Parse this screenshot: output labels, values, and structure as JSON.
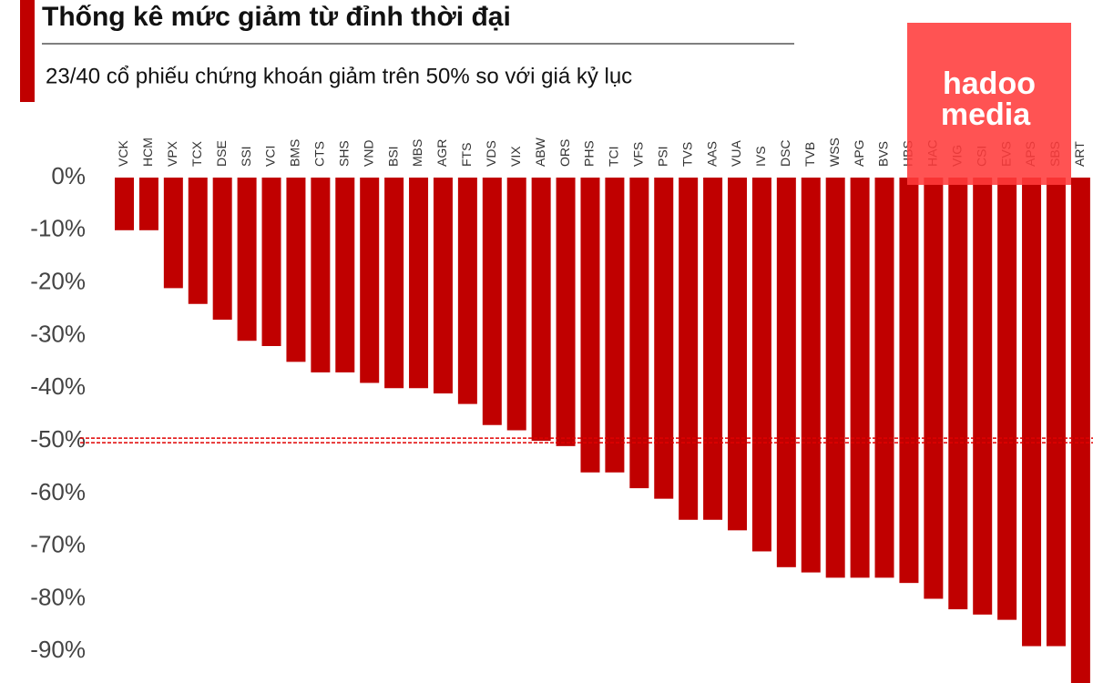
{
  "chart_data": {
    "type": "bar",
    "title": "Thống kê mức giảm từ đỉnh thời đại",
    "subtitle": "23/40 cổ phiếu chứng khoán giảm trên 50% so với giá kỷ lục",
    "categories": [
      "VCK",
      "HCM",
      "VPX",
      "TCX",
      "DSE",
      "SSI",
      "VCI",
      "BMS",
      "CTS",
      "SHS",
      "VND",
      "BSI",
      "MBS",
      "AGR",
      "FTS",
      "VDS",
      "VIX",
      "ABW",
      "ORS",
      "PHS",
      "TCI",
      "VFS",
      "PSI",
      "TVS",
      "AAS",
      "VUA",
      "IVS",
      "DSC",
      "TVB",
      "WSS",
      "APG",
      "BVS",
      "HBS",
      "HAC",
      "VIG",
      "CSI",
      "EVS",
      "APS",
      "SBS",
      "ART"
    ],
    "values": [
      -10,
      -10,
      -21,
      -24,
      -27,
      -31,
      -32,
      -35,
      -37,
      -37,
      -39,
      -40,
      -40,
      -41,
      -43,
      -47,
      -48,
      -50,
      -51,
      -56,
      -56,
      -59,
      -61,
      -65,
      -65,
      -67,
      -71,
      -74,
      -75,
      -76,
      -76,
      -76,
      -77,
      -80,
      -82,
      -83,
      -84,
      -89,
      -89,
      -97
    ],
    "color": "#c00000",
    "ylim": [
      -96,
      0
    ],
    "yticks": [
      {
        "value": 0,
        "label": "0%"
      },
      {
        "value": -10,
        "label": "-10%"
      },
      {
        "value": -20,
        "label": "-20%"
      },
      {
        "value": -30,
        "label": "-30%"
      },
      {
        "value": -40,
        "label": "-40%"
      },
      {
        "value": -50,
        "label": "-50%"
      },
      {
        "value": -60,
        "label": "-60%"
      },
      {
        "value": -70,
        "label": "-70%"
      },
      {
        "value": -80,
        "label": "-80%"
      },
      {
        "value": -90,
        "label": "-90%"
      }
    ],
    "reference_line": -50,
    "grid": false
  },
  "logo": [
    "hadoo",
    "media"
  ]
}
